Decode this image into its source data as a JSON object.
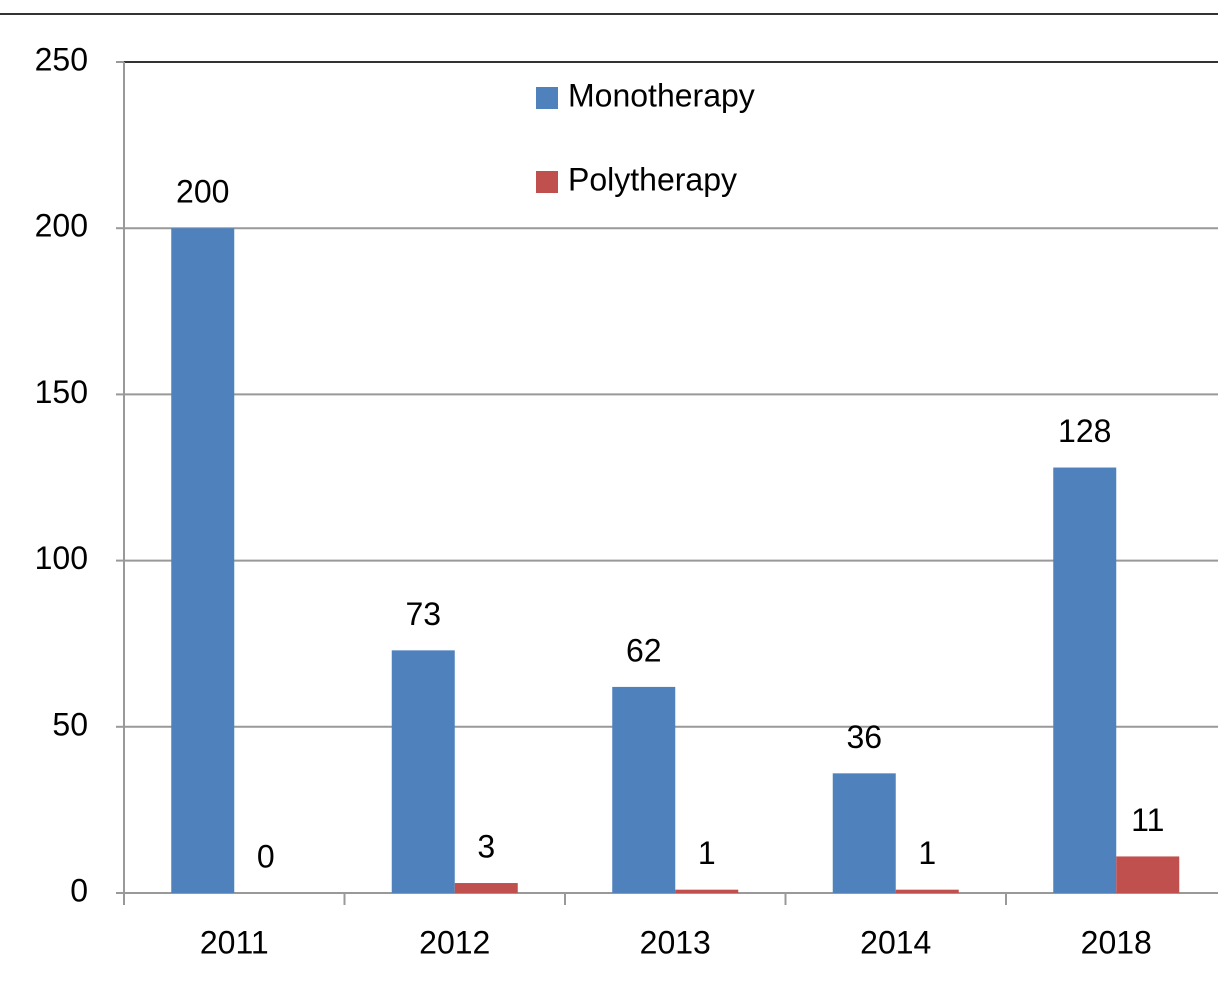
{
  "chart_data": {
    "type": "bar",
    "categories": [
      "2011",
      "2012",
      "2013",
      "2014",
      "2018"
    ],
    "series": [
      {
        "name": "Monotherapy",
        "color": "#4f81bd",
        "values": [
          200,
          73,
          62,
          36,
          128
        ]
      },
      {
        "name": "Polytherapy",
        "color": "#c0504d",
        "values": [
          0,
          3,
          1,
          1,
          11
        ]
      }
    ],
    "ylim": [
      0,
      250
    ],
    "yticks": [
      0,
      50,
      100,
      150,
      200,
      250
    ],
    "grid": true,
    "legend": "top"
  }
}
